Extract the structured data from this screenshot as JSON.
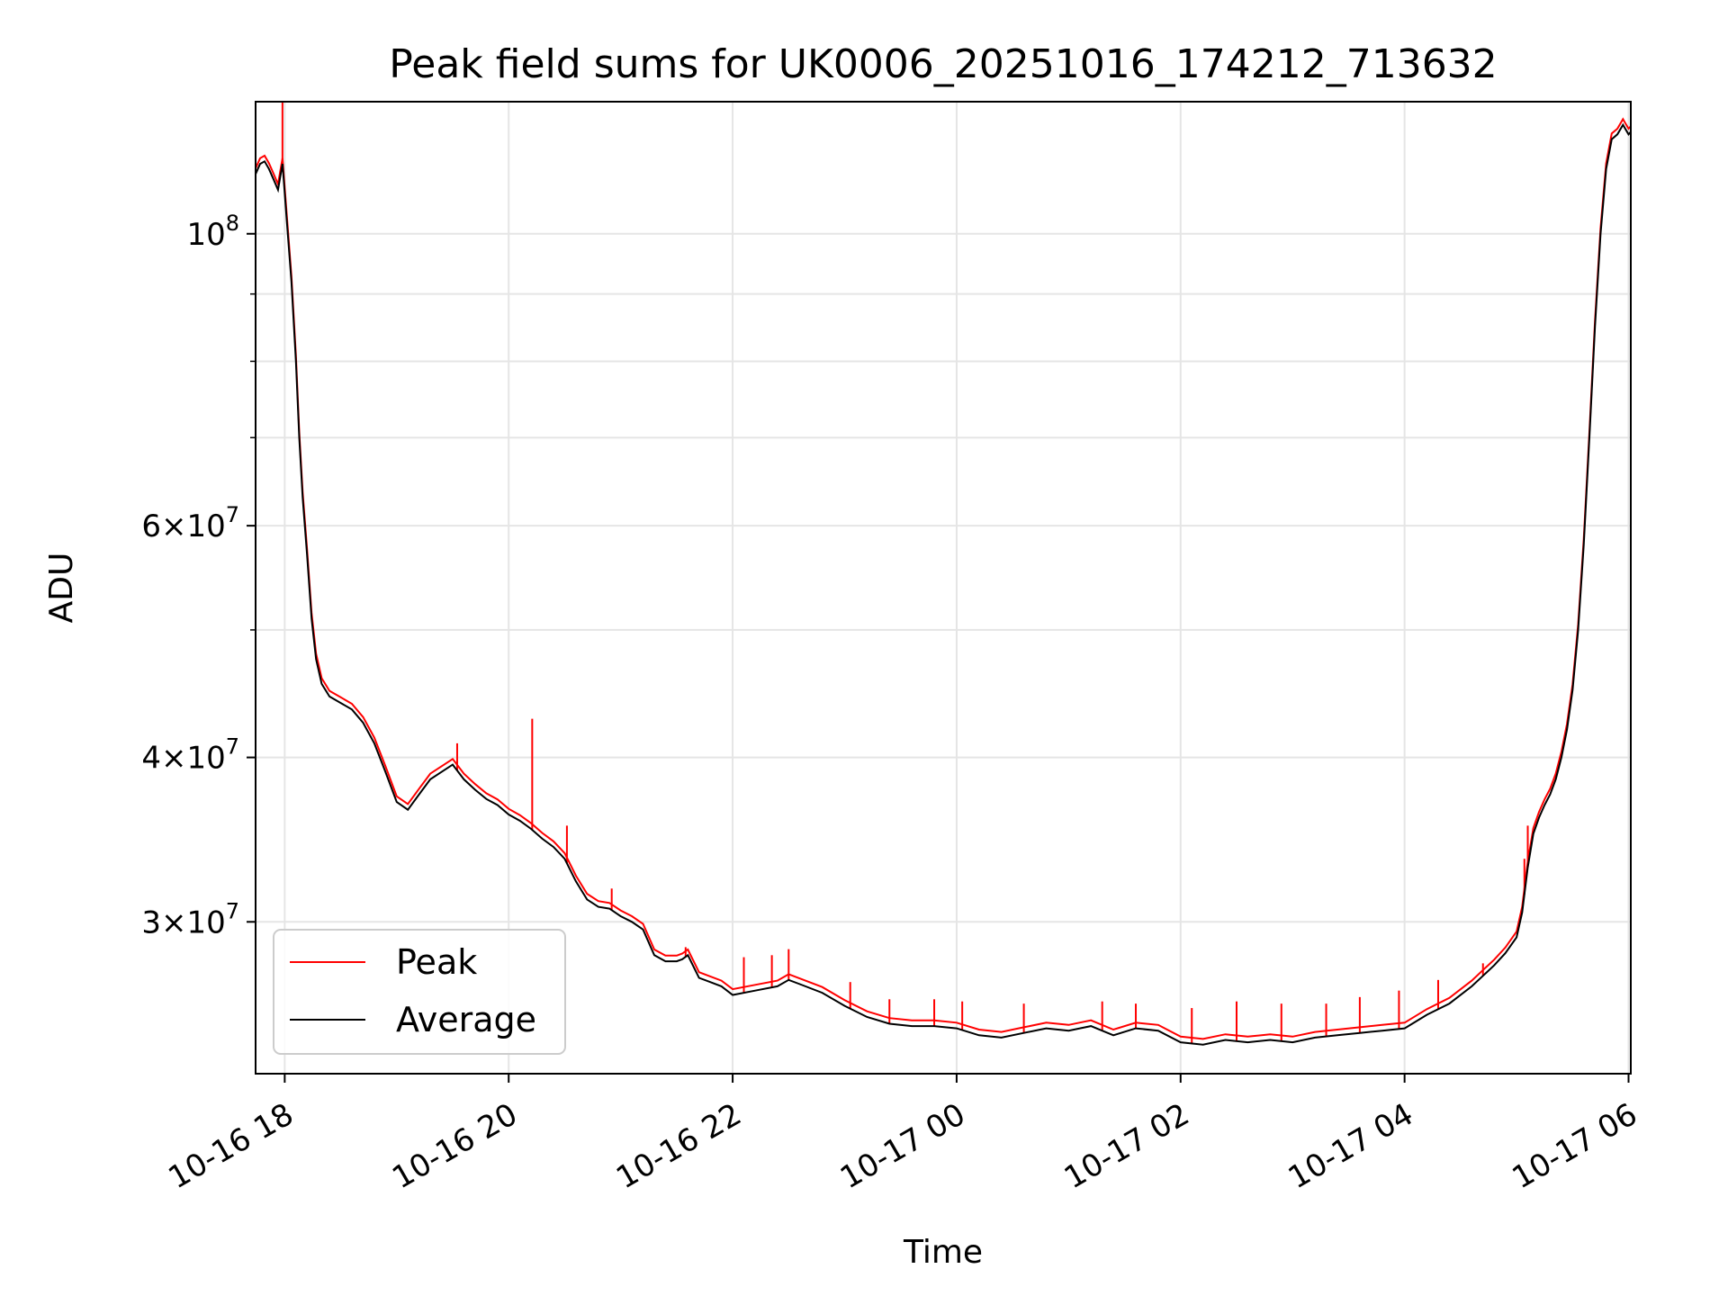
{
  "chart_data": {
    "type": "line",
    "title": "Peak field sums for UK0006_20251016_174212_713632",
    "xlabel": "Time",
    "ylabel": "ADU",
    "yscale": "log",
    "ylim": [
      23000000,
      126000000
    ],
    "xlim_hours": [
      17.74,
      30.02
    ],
    "grid": true,
    "legend_position": "lower-left",
    "x_ticks": [
      {
        "hours": 18,
        "label": "10-16 18"
      },
      {
        "hours": 20,
        "label": "10-16 20"
      },
      {
        "hours": 22,
        "label": "10-16 22"
      },
      {
        "hours": 24,
        "label": "10-17 00"
      },
      {
        "hours": 26,
        "label": "10-17 02"
      },
      {
        "hours": 28,
        "label": "10-17 04"
      },
      {
        "hours": 30,
        "label": "10-17 06"
      }
    ],
    "y_major_ticks": [
      {
        "value": 30000000,
        "mantissa": "3",
        "exp": "7"
      },
      {
        "value": 40000000,
        "mantissa": "4",
        "exp": "7"
      },
      {
        "value": 60000000,
        "mantissa": "6",
        "exp": "7"
      },
      {
        "value": 100000000,
        "mantissa": "",
        "exp": "8"
      }
    ],
    "y_minor_ticks": [
      50000000,
      70000000,
      80000000,
      90000000
    ],
    "series": [
      {
        "name": "Peak",
        "color": "#ff0000",
        "spikes": [
          [
            17.98,
            126000000
          ],
          [
            19.54,
            41000000
          ],
          [
            20.21,
            42800000
          ],
          [
            20.52,
            35500000
          ],
          [
            20.92,
            31800000
          ],
          [
            21.58,
            28700000
          ],
          [
            22.1,
            28200000
          ],
          [
            22.35,
            28300000
          ],
          [
            22.5,
            28600000
          ],
          [
            23.05,
            27000000
          ],
          [
            23.4,
            26200000
          ],
          [
            23.8,
            26200000
          ],
          [
            24.05,
            26100000
          ],
          [
            24.6,
            26000000
          ],
          [
            25.3,
            26100000
          ],
          [
            25.6,
            26000000
          ],
          [
            26.1,
            25800000
          ],
          [
            26.5,
            26100000
          ],
          [
            26.9,
            26000000
          ],
          [
            27.3,
            26000000
          ],
          [
            27.6,
            26300000
          ],
          [
            27.95,
            26600000
          ],
          [
            28.3,
            27100000
          ],
          [
            28.7,
            27900000
          ],
          [
            29.07,
            33500000
          ],
          [
            29.1,
            35500000
          ]
        ]
      },
      {
        "name": "Average",
        "color": "#000000",
        "x": [
          17.74,
          17.78,
          17.82,
          17.86,
          17.9,
          17.94,
          17.98,
          18.02,
          18.06,
          18.1,
          18.13,
          18.16,
          18.2,
          18.24,
          18.28,
          18.33,
          18.4,
          18.5,
          18.6,
          18.7,
          18.8,
          18.9,
          19.0,
          19.1,
          19.2,
          19.3,
          19.4,
          19.5,
          19.6,
          19.7,
          19.8,
          19.9,
          20.0,
          20.1,
          20.2,
          20.3,
          20.4,
          20.5,
          20.6,
          20.7,
          20.8,
          20.9,
          21.0,
          21.1,
          21.2,
          21.3,
          21.4,
          21.5,
          21.55,
          21.6,
          21.7,
          21.8,
          21.9,
          22.0,
          22.2,
          22.4,
          22.5,
          22.6,
          22.8,
          23.0,
          23.2,
          23.4,
          23.6,
          23.8,
          24.0,
          24.2,
          24.4,
          24.6,
          24.8,
          25.0,
          25.2,
          25.4,
          25.6,
          25.8,
          26.0,
          26.2,
          26.4,
          26.6,
          26.8,
          27.0,
          27.2,
          27.4,
          27.6,
          27.8,
          28.0,
          28.2,
          28.4,
          28.6,
          28.7,
          28.8,
          28.9,
          29.0,
          29.05,
          29.1,
          29.15,
          29.2,
          29.25,
          29.3,
          29.35,
          29.4,
          29.45,
          29.5,
          29.55,
          29.6,
          29.65,
          29.7,
          29.75,
          29.8,
          29.85,
          29.9,
          29.95,
          30.0,
          30.02
        ],
        "y": [
          111000000,
          113000000,
          113500000,
          112000000,
          110000000,
          108000000,
          113000000,
          102000000,
          92000000,
          80000000,
          70000000,
          63000000,
          57000000,
          51000000,
          47500000,
          45500000,
          44500000,
          44000000,
          43500000,
          42500000,
          41000000,
          39000000,
          37000000,
          36500000,
          37500000,
          38500000,
          39000000,
          39500000,
          38500000,
          37800000,
          37200000,
          36800000,
          36200000,
          35800000,
          35300000,
          34700000,
          34200000,
          33500000,
          32200000,
          31200000,
          30800000,
          30700000,
          30300000,
          30000000,
          29600000,
          28300000,
          28000000,
          28000000,
          28100000,
          28300000,
          27200000,
          27000000,
          26800000,
          26400000,
          26600000,
          26800000,
          27100000,
          26900000,
          26500000,
          25900000,
          25400000,
          25100000,
          25000000,
          25000000,
          24900000,
          24600000,
          24500000,
          24700000,
          24900000,
          24800000,
          25000000,
          24600000,
          24900000,
          24800000,
          24300000,
          24200000,
          24400000,
          24300000,
          24400000,
          24300000,
          24500000,
          24600000,
          24700000,
          24800000,
          24900000,
          25500000,
          26000000,
          26800000,
          27300000,
          27800000,
          28400000,
          29200000,
          30500000,
          33000000,
          35000000,
          36000000,
          36800000,
          37500000,
          38500000,
          40000000,
          42000000,
          45000000,
          50000000,
          58000000,
          70000000,
          85000000,
          100000000,
          112000000,
          118000000,
          119000000,
          121000000,
          119000000,
          119500000
        ]
      }
    ]
  }
}
